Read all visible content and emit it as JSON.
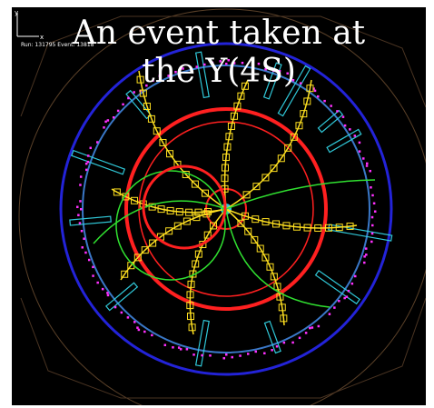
{
  "slide": {
    "title_line1": "An event taken at",
    "title_line2": "the Y(4S)"
  },
  "display": {
    "run_label": "Run: 131795  Event: 13818",
    "axes": {
      "y": "y",
      "x": "x"
    }
  },
  "colors": {
    "background": "#000000",
    "outer_ring": "#1a1ae0",
    "inner_ring": "#2e7ad0",
    "drift_ring": "#ff2020",
    "tracks": "#ffe020",
    "tracks_alt": "#30e030",
    "calorimeter": "#30c8d8",
    "hits": "#ff30ff",
    "frame": "#6a4e30"
  }
}
